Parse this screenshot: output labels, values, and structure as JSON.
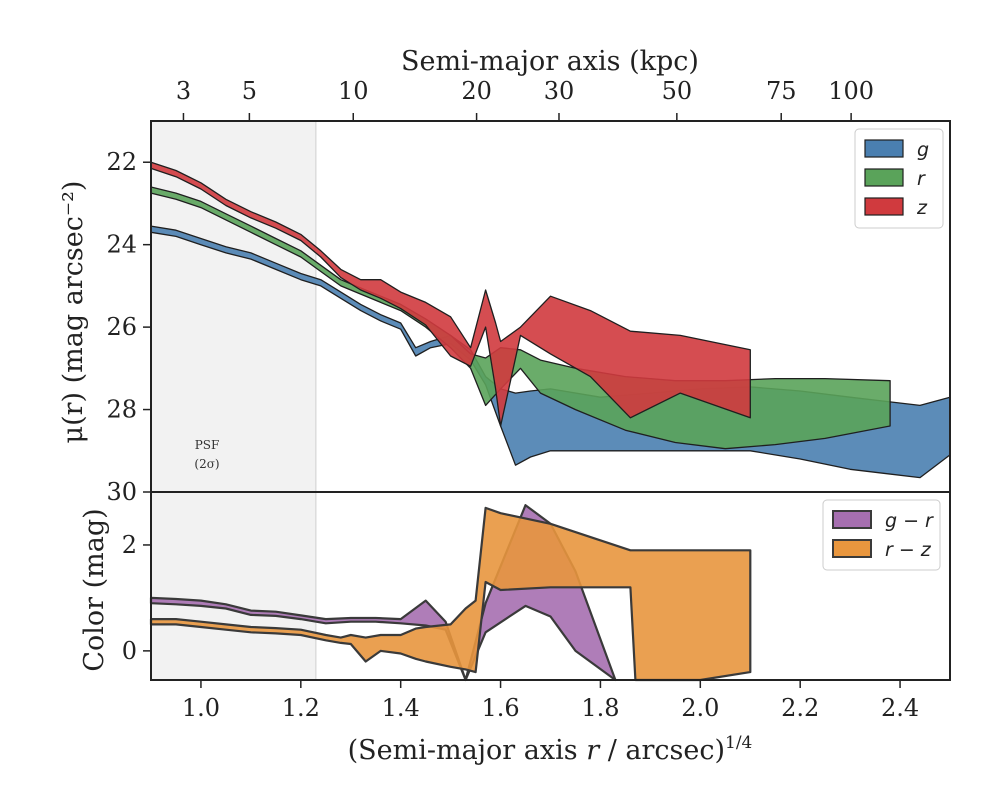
{
  "chart_data": [
    {
      "type": "area",
      "panel": "surface-brightness",
      "ylabel": "μ(r) (mag arcsec⁻²)",
      "top_xlabel": "Semi-major axis (kpc)",
      "xlim": [
        0.9,
        2.5
      ],
      "ylim": [
        30,
        21
      ],
      "y_inverted": true,
      "yticks": [
        22,
        24,
        26,
        28,
        30
      ],
      "top_ticks": [
        {
          "label": "3",
          "x": 0.965
        },
        {
          "label": "5",
          "x": 1.097
        },
        {
          "label": "10",
          "x": 1.305
        },
        {
          "label": "20",
          "x": 1.552
        },
        {
          "label": "30",
          "x": 1.717
        },
        {
          "label": "50",
          "x": 1.953
        },
        {
          "label": "75",
          "x": 2.162
        },
        {
          "label": "100",
          "x": 2.302
        }
      ],
      "shaded_region": {
        "label_line1": "PSF",
        "label_line2": "(2σ)",
        "x_max": 1.23
      },
      "legend_position": "upper right",
      "series": [
        {
          "name": "g",
          "color": "#4a7fb0",
          "x": [
            0.9,
            0.95,
            1.0,
            1.05,
            1.1,
            1.15,
            1.2,
            1.24,
            1.28,
            1.32,
            1.36,
            1.4,
            1.43,
            1.46,
            1.5,
            1.54,
            1.57,
            1.6,
            1.63,
            1.66,
            1.7,
            1.8,
            1.9,
            2.0,
            2.1,
            2.2,
            2.3,
            2.44,
            2.5
          ],
          "lower": [
            23.55,
            23.65,
            23.85,
            24.05,
            24.2,
            24.45,
            24.7,
            24.85,
            25.15,
            25.45,
            25.7,
            25.9,
            26.5,
            26.35,
            26.2,
            26.55,
            27.2,
            27.5,
            27.6,
            27.55,
            27.5,
            27.7,
            27.6,
            27.5,
            27.45,
            27.55,
            27.7,
            27.9,
            27.7
          ],
          "upper": [
            23.7,
            23.8,
            24.0,
            24.2,
            24.35,
            24.6,
            24.85,
            25.0,
            25.3,
            25.6,
            25.85,
            26.05,
            26.7,
            26.5,
            26.4,
            26.8,
            27.4,
            28.4,
            29.35,
            29.15,
            29.0,
            29.0,
            29.0,
            29.0,
            29.0,
            29.2,
            29.45,
            29.65,
            29.1
          ]
        },
        {
          "name": "r",
          "color": "#5aa35a",
          "x": [
            0.9,
            0.95,
            1.0,
            1.05,
            1.1,
            1.15,
            1.2,
            1.24,
            1.28,
            1.32,
            1.36,
            1.4,
            1.45,
            1.5,
            1.54,
            1.57,
            1.6,
            1.64,
            1.68,
            1.75,
            1.85,
            1.95,
            2.05,
            2.15,
            2.25,
            2.38
          ],
          "lower": [
            22.6,
            22.75,
            22.95,
            23.25,
            23.55,
            23.85,
            24.15,
            24.5,
            24.85,
            25.05,
            25.25,
            25.45,
            25.8,
            26.2,
            26.65,
            26.75,
            26.5,
            26.55,
            26.8,
            27.0,
            27.2,
            27.3,
            27.3,
            27.25,
            27.25,
            27.3
          ],
          "upper": [
            22.75,
            22.9,
            23.1,
            23.4,
            23.7,
            24.0,
            24.3,
            24.65,
            25.0,
            25.2,
            25.4,
            25.6,
            26.0,
            26.5,
            27.0,
            27.9,
            27.5,
            27.0,
            27.6,
            28.0,
            28.5,
            28.8,
            28.95,
            28.85,
            28.7,
            28.4
          ]
        },
        {
          "name": "z",
          "color": "#d03a3e",
          "x": [
            0.9,
            0.95,
            1.0,
            1.05,
            1.1,
            1.15,
            1.2,
            1.24,
            1.28,
            1.32,
            1.36,
            1.4,
            1.45,
            1.5,
            1.54,
            1.57,
            1.59,
            1.6,
            1.64,
            1.7,
            1.78,
            1.86,
            1.96,
            2.1
          ],
          "lower": [
            22.0,
            22.2,
            22.5,
            22.9,
            23.2,
            23.45,
            23.75,
            24.15,
            24.6,
            24.85,
            24.85,
            25.15,
            25.4,
            25.75,
            26.5,
            25.1,
            25.9,
            26.35,
            26.0,
            25.25,
            25.6,
            26.1,
            26.2,
            26.55
          ],
          "upper": [
            22.15,
            22.35,
            22.65,
            23.05,
            23.35,
            23.6,
            23.9,
            24.3,
            24.8,
            25.1,
            25.3,
            25.55,
            25.95,
            26.7,
            26.95,
            26.0,
            27.5,
            28.4,
            26.2,
            26.65,
            27.2,
            28.2,
            27.6,
            28.2
          ]
        }
      ]
    },
    {
      "type": "area",
      "panel": "color",
      "xlabel": "(Semi-major axis r / arcsec)^1/4",
      "ylabel": "Color (mag)",
      "xlim": [
        0.9,
        2.5
      ],
      "ylim": [
        -0.55,
        3.0
      ],
      "xticks": [
        1.0,
        1.2,
        1.4,
        1.6,
        1.8,
        2.0,
        2.2,
        2.4
      ],
      "yticks": [
        0,
        2
      ],
      "legend_position": "upper right",
      "series": [
        {
          "name": "g − r",
          "color": "#a66fb0",
          "x": [
            0.9,
            0.95,
            1.0,
            1.05,
            1.1,
            1.15,
            1.2,
            1.25,
            1.3,
            1.35,
            1.4,
            1.45,
            1.49,
            1.53,
            1.57,
            1.65,
            1.7,
            1.75,
            1.83
          ],
          "lower": [
            0.9,
            0.88,
            0.85,
            0.8,
            0.68,
            0.66,
            0.6,
            0.52,
            0.55,
            0.55,
            0.52,
            0.48,
            0.4,
            -0.55,
            0.35,
            0.85,
            0.65,
            0.0,
            -0.55
          ],
          "upper": [
            1.0,
            0.98,
            0.95,
            0.88,
            0.76,
            0.74,
            0.67,
            0.6,
            0.62,
            0.62,
            0.6,
            0.95,
            0.55,
            -0.55,
            0.9,
            2.75,
            2.4,
            1.5,
            -0.55
          ]
        },
        {
          "name": "r − z",
          "color": "#e8963e",
          "x": [
            0.9,
            0.95,
            1.0,
            1.05,
            1.1,
            1.15,
            1.2,
            1.25,
            1.28,
            1.3,
            1.33,
            1.36,
            1.4,
            1.43,
            1.45,
            1.5,
            1.53,
            1.55,
            1.57,
            1.6,
            1.7,
            1.86,
            1.87,
            1.9,
            2.0,
            2.1
          ],
          "lower": [
            0.5,
            0.5,
            0.45,
            0.4,
            0.35,
            0.33,
            0.3,
            0.2,
            0.15,
            0.13,
            -0.2,
            0.0,
            -0.05,
            -0.15,
            -0.2,
            -0.3,
            -0.35,
            -0.4,
            1.3,
            1.15,
            1.2,
            1.2,
            -0.55,
            -0.55,
            -0.55,
            -0.4
          ],
          "upper": [
            0.6,
            0.6,
            0.55,
            0.5,
            0.45,
            0.43,
            0.4,
            0.3,
            0.25,
            0.3,
            0.25,
            0.3,
            0.3,
            0.42,
            0.45,
            0.5,
            0.8,
            0.95,
            2.7,
            2.6,
            2.4,
            1.9,
            1.9,
            1.9,
            1.9,
            1.9
          ]
        }
      ]
    }
  ]
}
